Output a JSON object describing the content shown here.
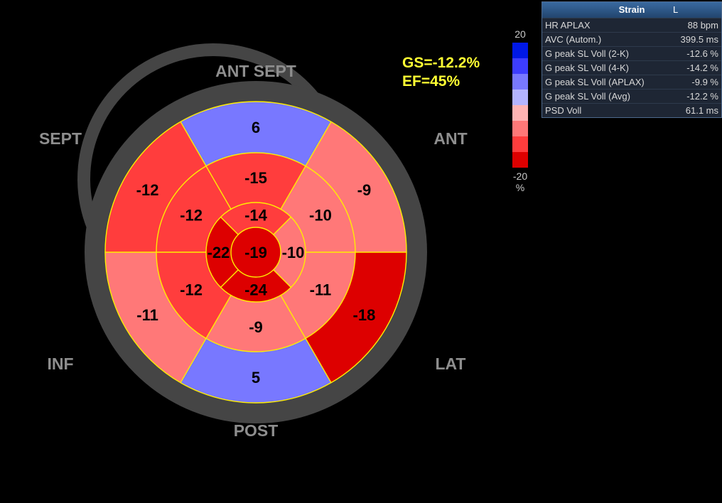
{
  "chart_data": {
    "type": "polar bullseye (17-segment strain map)",
    "walls": [
      "ANT SEPT",
      "SEPT",
      "ANT",
      "INF",
      "LAT",
      "POST"
    ],
    "segments": {
      "basal": [
        {
          "value": 6
        },
        {
          "value": -9
        },
        {
          "value": -18
        },
        {
          "value": 5
        },
        {
          "value": -11
        },
        {
          "value": -12
        }
      ],
      "mid": [
        {
          "value": -15
        },
        {
          "value": -10
        },
        {
          "value": -11
        },
        {
          "value": -9
        },
        {
          "value": -12
        },
        {
          "value": -12
        }
      ],
      "apical": [
        {
          "value": -14
        },
        {
          "value": -10
        },
        {
          "value": -24
        },
        {
          "value": -22
        }
      ],
      "apex": {
        "value": -19
      }
    },
    "colorbar": {
      "max": "20",
      "min": "-20",
      "unit": "%",
      "colors": [
        "#0018e6",
        "#3d3dff",
        "#7878ff",
        "#b4b4ff",
        "#ffb4b4",
        "#ff7878",
        "#ff3d3d",
        "#dd0000"
      ]
    }
  },
  "summary": {
    "gs": "GS=-12.2%",
    "ef": "EF=45%"
  },
  "panel": {
    "title": "Strain",
    "flag": "L",
    "rows": [
      {
        "label": "HR APLAX",
        "value": "88 bpm"
      },
      {
        "label": "AVC (Autom.)",
        "value": "399.5 ms"
      },
      {
        "label": "G peak SL Voll (2-K)",
        "value": "-12.6 %"
      },
      {
        "label": "G peak SL Voll (4-K)",
        "value": "-14.2 %"
      },
      {
        "label": "G peak SL Voll (APLAX)",
        "value": "-9.9 %"
      },
      {
        "label": "G peak SL Voll (Avg)",
        "value": "-12.2 %"
      },
      {
        "label": "PSD Voll",
        "value": "61.1 ms"
      }
    ]
  }
}
